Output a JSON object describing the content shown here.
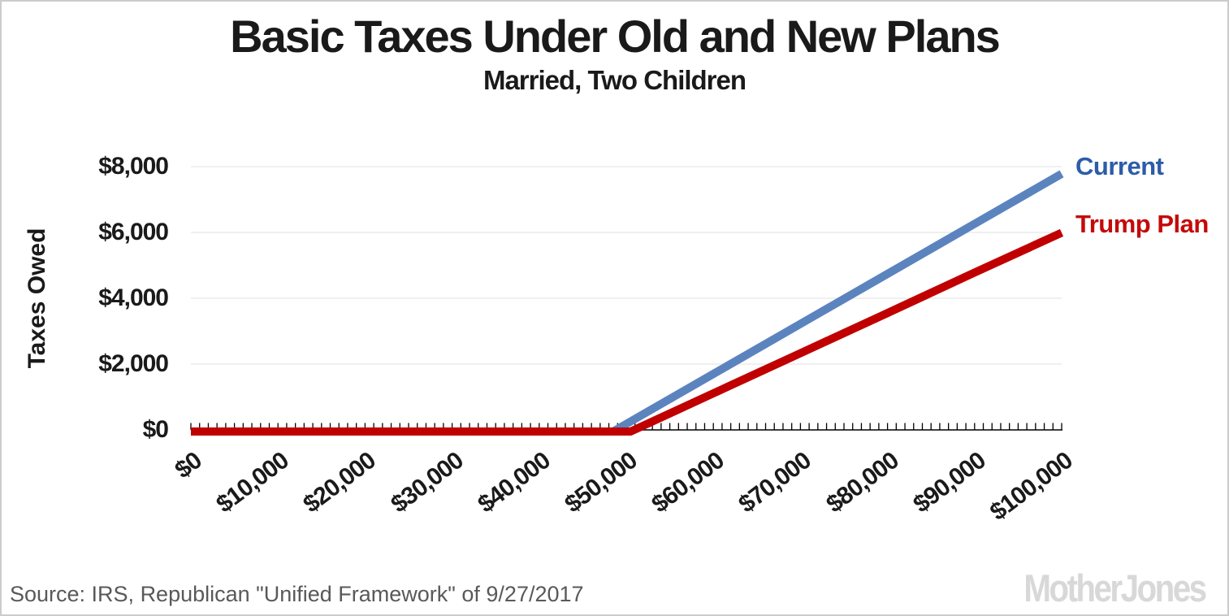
{
  "header": {
    "title": "Basic Taxes Under Old and New Plans",
    "subtitle": "Married, Two Children"
  },
  "footer": {
    "source": "Source: IRS, Republican \"Unified Framework\" of 9/27/2017",
    "logo_text": "MotherJones",
    "logo_color": "#d8d8d8",
    "source_color": "#595959"
  },
  "chart_data": {
    "type": "line",
    "title": "Basic Taxes Under Old and New Plans",
    "subtitle": "Married, Two Children",
    "xlabel": "",
    "ylabel": "Taxes Owed",
    "xlim": [
      0,
      100000
    ],
    "ylim": [
      0,
      8800
    ],
    "grid": "horizontal-only",
    "gridline_color": "#e8e8e8",
    "axis_color": "#000000",
    "legend_position": "right-of-line-ends",
    "x_ticks": [
      "$0",
      "$10,000",
      "$20,000",
      "$30,000",
      "$40,000",
      "$50,000",
      "$60,000",
      "$70,000",
      "$80,000",
      "$90,000",
      "$100,000"
    ],
    "x_tick_values": [
      0,
      10000,
      20000,
      30000,
      40000,
      50000,
      60000,
      70000,
      80000,
      90000,
      100000
    ],
    "x_minor_tick_step": 1000,
    "y_ticks": [
      "$0",
      "$2,000",
      "$4,000",
      "$6,000",
      "$8,000"
    ],
    "y_tick_values": [
      0,
      2000,
      4000,
      6000,
      8000
    ],
    "series": [
      {
        "name": "Current",
        "color": "#5b84bf",
        "label_color": "#2d5ca8",
        "x": [
          0,
          10000,
          20000,
          30000,
          40000,
          48500,
          50000,
          60000,
          70000,
          80000,
          90000,
          100000
        ],
        "y": [
          0,
          0,
          0,
          0,
          0,
          0,
          230,
          1750,
          3270,
          4790,
          6310,
          7830
        ]
      },
      {
        "name": "Trump Plan",
        "color": "#c00000",
        "label_color": "#c40a0a",
        "x": [
          0,
          10000,
          20000,
          30000,
          40000,
          50000,
          50500,
          60000,
          70000,
          80000,
          90000,
          100000
        ],
        "y": [
          0,
          0,
          0,
          0,
          0,
          0,
          0,
          1160,
          2380,
          3600,
          4830,
          6040
        ]
      }
    ],
    "source": "Source: IRS, Republican \"Unified Framework\" of 9/27/2017"
  }
}
